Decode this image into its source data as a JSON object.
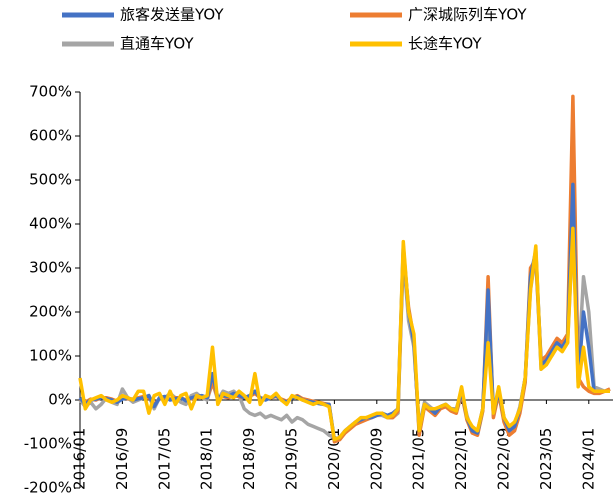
{
  "chart_data": {
    "type": "line",
    "categories": [
      "2016/01",
      null,
      null,
      null,
      null,
      null,
      null,
      null,
      "2016/09",
      null,
      null,
      null,
      null,
      null,
      null,
      null,
      "2017/05",
      null,
      null,
      null,
      null,
      null,
      null,
      null,
      "2018/01",
      null,
      null,
      null,
      null,
      null,
      null,
      null,
      "2018/09",
      null,
      null,
      null,
      null,
      null,
      null,
      null,
      "2019/05",
      null,
      null,
      null,
      null,
      null,
      null,
      null,
      "2020/01",
      null,
      null,
      null,
      null,
      null,
      null,
      null,
      "2020/09",
      null,
      null,
      null,
      null,
      null,
      null,
      null,
      "2021/05",
      null,
      null,
      null,
      null,
      null,
      null,
      null,
      "2022/01",
      null,
      null,
      null,
      null,
      null,
      null,
      null,
      "2022/09",
      null,
      null,
      null,
      null,
      null,
      null,
      null,
      "2023/05",
      null,
      null,
      null,
      null,
      null,
      null,
      null,
      "2024/01",
      null,
      null,
      null,
      null
    ],
    "series": [
      {
        "name": "旅客发送量YOY",
        "color": "#4472c4",
        "values": [
          5,
          -10,
          0,
          2,
          5,
          3,
          0,
          -5,
          2,
          5,
          0,
          3,
          5,
          10,
          -15,
          5,
          8,
          0,
          3,
          5,
          -2,
          5,
          8,
          10,
          5,
          60,
          5,
          10,
          8,
          15,
          10,
          5,
          10,
          20,
          5,
          0,
          5,
          10,
          0,
          -5,
          5,
          8,
          0,
          -3,
          -5,
          -8,
          -10,
          -10,
          -90,
          -85,
          -70,
          -60,
          -50,
          -45,
          -40,
          -40,
          -35,
          -30,
          -35,
          -30,
          -20,
          350,
          200,
          130,
          -70,
          -10,
          -20,
          -30,
          -15,
          -10,
          -20,
          -25,
          20,
          -40,
          -70,
          -75,
          -20,
          250,
          -30,
          20,
          -40,
          -70,
          -60,
          -20,
          50,
          280,
          340,
          80,
          90,
          110,
          130,
          120,
          140,
          490,
          40,
          200,
          120,
          20,
          20,
          20,
          20
        ]
      },
      {
        "name": "广深城际列车YOY",
        "color": "#ed7d31",
        "values": [
          3,
          -5,
          2,
          0,
          5,
          5,
          2,
          -3,
          5,
          3,
          2,
          5,
          8,
          5,
          -10,
          3,
          5,
          2,
          5,
          5,
          0,
          3,
          5,
          8,
          5,
          40,
          5,
          8,
          5,
          10,
          8,
          5,
          8,
          15,
          5,
          3,
          5,
          8,
          2,
          -3,
          5,
          10,
          3,
          0,
          -3,
          -5,
          -8,
          -10,
          -95,
          -90,
          -75,
          -65,
          -55,
          -50,
          -45,
          -40,
          -35,
          -30,
          -40,
          -40,
          -25,
          340,
          210,
          140,
          -80,
          -15,
          -25,
          -35,
          -20,
          -15,
          -25,
          -30,
          15,
          -45,
          -75,
          -80,
          -25,
          280,
          -40,
          15,
          -50,
          -80,
          -70,
          -30,
          40,
          300,
          320,
          90,
          100,
          120,
          140,
          130,
          150,
          690,
          50,
          30,
          20,
          15,
          15,
          20,
          25
        ]
      },
      {
        "name": "直通车YOY",
        "color": "#a5a5a5",
        "values": [
          0,
          -15,
          -5,
          -20,
          -10,
          5,
          -5,
          -10,
          25,
          5,
          -5,
          0,
          5,
          10,
          -20,
          5,
          5,
          15,
          5,
          -5,
          -10,
          10,
          15,
          5,
          0,
          40,
          0,
          20,
          15,
          20,
          10,
          -20,
          -30,
          -35,
          -30,
          -40,
          -35,
          -40,
          -45,
          -35,
          -50,
          -40,
          -45,
          -55,
          -60,
          -65,
          -70,
          -80,
          -85,
          -90,
          -70,
          -60,
          -50,
          -45,
          -40,
          -40,
          -35,
          -35,
          -40,
          -40,
          -30,
          330,
          180,
          120,
          -60,
          -5,
          -15,
          -25,
          -15,
          -10,
          -20,
          -20,
          20,
          -35,
          -70,
          -70,
          -20,
          200,
          -35,
          20,
          -40,
          -60,
          -55,
          -15,
          50,
          250,
          330,
          70,
          90,
          100,
          120,
          115,
          130,
          380,
          60,
          280,
          200,
          30,
          25,
          20,
          25
        ]
      },
      {
        "name": "长途车YOY",
        "color": "#ffc000",
        "values": [
          50,
          -20,
          0,
          5,
          10,
          0,
          -5,
          0,
          10,
          5,
          0,
          20,
          20,
          -30,
          10,
          15,
          -10,
          20,
          -10,
          10,
          15,
          -20,
          10,
          5,
          10,
          120,
          -10,
          15,
          10,
          5,
          20,
          10,
          -5,
          60,
          -10,
          10,
          5,
          15,
          0,
          -10,
          10,
          5,
          0,
          -5,
          -10,
          -5,
          -10,
          -15,
          -90,
          -85,
          -70,
          -60,
          -50,
          -40,
          -40,
          -35,
          -30,
          -30,
          -40,
          -35,
          -20,
          360,
          200,
          150,
          -70,
          -10,
          -20,
          -20,
          -15,
          -10,
          -20,
          -25,
          30,
          -40,
          -60,
          -70,
          -20,
          130,
          -30,
          30,
          -40,
          -60,
          -50,
          -20,
          50,
          250,
          350,
          70,
          80,
          100,
          120,
          110,
          130,
          390,
          30,
          120,
          30,
          20,
          20,
          20,
          20
        ]
      }
    ],
    "ylim": [
      -200,
      700
    ],
    "yticks": [
      {
        "value": -200,
        "label": "-200%"
      },
      {
        "value": -100,
        "label": "-100%"
      },
      {
        "value": 0,
        "label": "0%"
      },
      {
        "value": 100,
        "label": "100%"
      },
      {
        "value": 200,
        "label": "200%"
      },
      {
        "value": 300,
        "label": "300%"
      },
      {
        "value": 400,
        "label": "400%"
      },
      {
        "value": 500,
        "label": "500%"
      },
      {
        "value": 600,
        "label": "600%"
      },
      {
        "value": 700,
        "label": "700%"
      }
    ],
    "grid": false
  }
}
